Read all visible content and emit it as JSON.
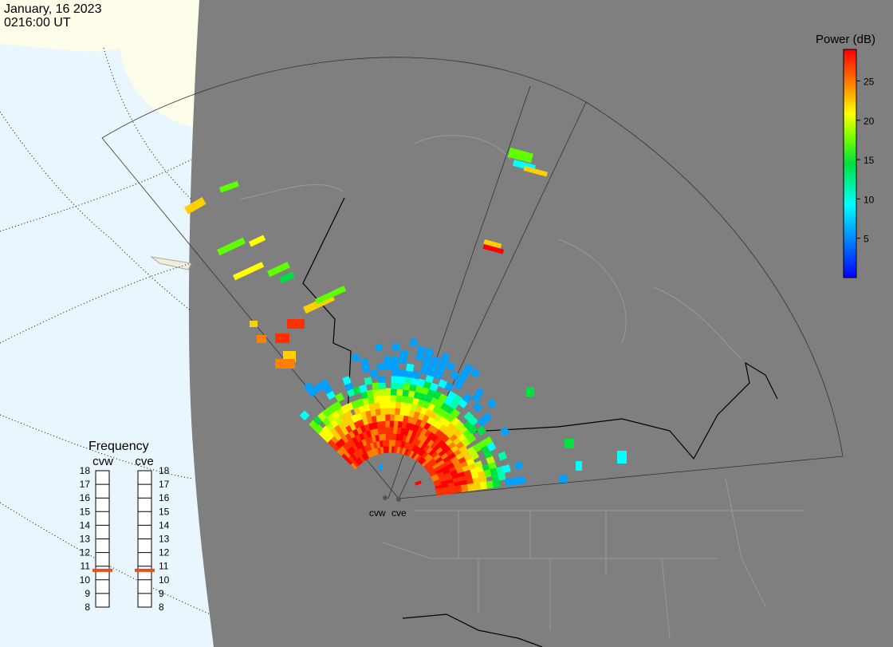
{
  "header": {
    "date": "January, 16 2023",
    "time": "0216:00 UT"
  },
  "colorbar": {
    "title": "Power (dB)",
    "range": [
      0,
      29
    ],
    "ticks": [
      5,
      10,
      15,
      20,
      25
    ]
  },
  "frequency": {
    "title": "Frequency",
    "range": [
      8,
      18
    ],
    "ticks": [
      8,
      9,
      10,
      11,
      12,
      13,
      14,
      15,
      16,
      17,
      18
    ],
    "radars": [
      {
        "name": "cvw",
        "frequency": 10.7
      },
      {
        "name": "cve",
        "frequency": 10.7
      }
    ]
  },
  "radar_sites": [
    "cvw",
    "cve"
  ]
}
